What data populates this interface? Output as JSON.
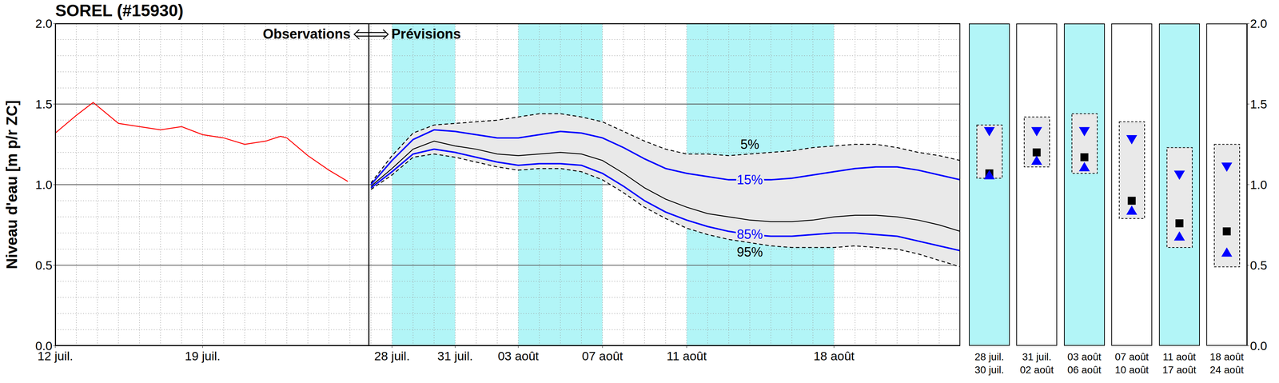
{
  "chart_data": [
    {
      "type": "line",
      "title": "SOREL (#15930)",
      "y_label": "Niveau d'eau [m p/r ZC]",
      "annotations": {
        "left": "Observations",
        "right": "Prévisions",
        "divider": 14.9
      },
      "highlight_periods": [
        [
          16,
          19
        ],
        [
          22,
          26
        ],
        [
          30,
          37
        ]
      ],
      "xlim": [
        0,
        43
      ],
      "xticks": [
        {
          "value": 0,
          "label": "12 juil."
        },
        {
          "value": 7,
          "label": "19 juil."
        },
        {
          "value": 16,
          "label": "28 juil."
        },
        {
          "value": 19,
          "label": "31 juil."
        },
        {
          "value": 22,
          "label": "03 août"
        },
        {
          "value": 26,
          "label": "07 août"
        },
        {
          "value": 30,
          "label": "11 août"
        },
        {
          "value": 37,
          "label": "18 août"
        }
      ],
      "ylim": [
        0,
        2
      ],
      "yticks": [
        {
          "value": 0,
          "label": "0.0"
        },
        0.5,
        {
          "value": 1,
          "label": "1.0"
        },
        1.5,
        {
          "value": 2,
          "label": "2.0"
        }
      ],
      "grid": true,
      "series": [
        {
          "color": "#ff0000",
          "line_style": "solid",
          "x": [
            0,
            1,
            1.8,
            3,
            4,
            5,
            6,
            7,
            8,
            9,
            10,
            10.7,
            11,
            12,
            13,
            13.9
          ],
          "values": [
            1.32,
            1.43,
            1.51,
            1.38,
            1.36,
            1.34,
            1.36,
            1.31,
            1.29,
            1.25,
            1.27,
            1.3,
            1.29,
            1.18,
            1.09,
            1.02
          ]
        },
        {
          "name": "5%",
          "color": "#000000",
          "line_style": "dashed",
          "x": [
            15,
            16,
            17,
            18,
            19,
            20,
            21,
            22,
            23,
            24,
            25,
            26,
            27,
            28,
            29,
            30,
            31,
            32,
            33,
            34,
            35,
            36,
            37,
            38,
            39,
            40,
            41,
            42,
            43
          ],
          "values": [
            1.01,
            1.18,
            1.32,
            1.37,
            1.38,
            1.39,
            1.4,
            1.42,
            1.44,
            1.44,
            1.42,
            1.39,
            1.33,
            1.27,
            1.22,
            1.19,
            1.19,
            1.18,
            1.19,
            1.2,
            1.21,
            1.23,
            1.24,
            1.25,
            1.25,
            1.23,
            1.2,
            1.18,
            1.15
          ]
        },
        {
          "name": "15%",
          "color": "#0000ff",
          "line_style": "solid",
          "x": [
            15,
            16,
            17,
            18,
            19,
            20,
            21,
            22,
            23,
            24,
            25,
            26,
            27,
            28,
            29,
            30,
            31,
            32,
            33,
            34,
            35,
            36,
            37,
            38,
            39,
            40,
            41,
            42,
            43
          ],
          "values": [
            1.0,
            1.15,
            1.28,
            1.34,
            1.33,
            1.31,
            1.29,
            1.29,
            1.31,
            1.33,
            1.32,
            1.29,
            1.23,
            1.16,
            1.1,
            1.07,
            1.05,
            1.03,
            1.03,
            1.03,
            1.04,
            1.06,
            1.08,
            1.1,
            1.11,
            1.11,
            1.09,
            1.06,
            1.03
          ]
        },
        {
          "color": "#000000",
          "line_style": "solid",
          "x": [
            15,
            16,
            17,
            18,
            19,
            20,
            21,
            22,
            23,
            24,
            25,
            26,
            27,
            28,
            29,
            30,
            31,
            32,
            33,
            34,
            35,
            36,
            37,
            38,
            39,
            40,
            41,
            42,
            43
          ],
          "values": [
            0.99,
            1.1,
            1.22,
            1.27,
            1.24,
            1.22,
            1.19,
            1.18,
            1.19,
            1.2,
            1.19,
            1.15,
            1.07,
            0.98,
            0.91,
            0.86,
            0.82,
            0.8,
            0.78,
            0.77,
            0.77,
            0.78,
            0.8,
            0.81,
            0.81,
            0.8,
            0.78,
            0.75,
            0.71
          ]
        },
        {
          "name": "85%",
          "color": "#0000ff",
          "line_style": "solid",
          "x": [
            15,
            16,
            17,
            18,
            19,
            20,
            21,
            22,
            23,
            24,
            25,
            26,
            27,
            28,
            29,
            30,
            31,
            32,
            33,
            34,
            35,
            36,
            37,
            38,
            39,
            40,
            41,
            42,
            43
          ],
          "values": [
            0.98,
            1.08,
            1.19,
            1.22,
            1.2,
            1.17,
            1.14,
            1.12,
            1.13,
            1.13,
            1.12,
            1.07,
            0.99,
            0.9,
            0.83,
            0.78,
            0.74,
            0.71,
            0.69,
            0.68,
            0.68,
            0.69,
            0.7,
            0.7,
            0.69,
            0.68,
            0.65,
            0.62,
            0.59
          ]
        },
        {
          "name": "95%",
          "color": "#000000",
          "line_style": "dashed",
          "x": [
            15,
            16,
            17,
            18,
            19,
            20,
            21,
            22,
            23,
            24,
            25,
            26,
            27,
            28,
            29,
            30,
            31,
            32,
            33,
            34,
            35,
            36,
            37,
            38,
            39,
            40,
            41,
            42,
            43
          ],
          "values": [
            0.97,
            1.06,
            1.17,
            1.19,
            1.17,
            1.14,
            1.11,
            1.09,
            1.1,
            1.1,
            1.08,
            1.03,
            0.95,
            0.86,
            0.79,
            0.73,
            0.69,
            0.66,
            0.64,
            0.62,
            0.61,
            0.61,
            0.61,
            0.62,
            0.61,
            0.6,
            0.57,
            0.53,
            0.49
          ]
        }
      ]
    },
    {
      "type": "interval",
      "categories": [
        [
          "28 juil.",
          "30 juil."
        ],
        [
          "31 juil.",
          "02 août"
        ],
        [
          "03 août",
          "06 août"
        ],
        [
          "07 août",
          "10 août"
        ],
        [
          "11 août",
          "17 août"
        ],
        [
          "18 août",
          "24 août"
        ]
      ],
      "colors": [
        "#b2f5f7",
        "#ffffff",
        "#b2f5f7",
        "#ffffff",
        "#b2f5f7",
        "#ffffff"
      ],
      "ylim": [
        0,
        2
      ],
      "yticks": [
        {
          "value": 0,
          "label": "0.0"
        },
        0.5,
        {
          "value": 1,
          "label": "1.0"
        },
        1.5,
        {
          "value": 2,
          "label": "2.0"
        }
      ],
      "series": [
        {
          "color": "#000000",
          "line_style": "dashed",
          "values": [
            1.37,
            1.42,
            1.44,
            1.39,
            1.23,
            1.25
          ]
        },
        {
          "color": "#0000ff",
          "marker": "triangle-down",
          "values": [
            1.33,
            1.33,
            1.33,
            1.28,
            1.06,
            1.11
          ]
        },
        {
          "color": "#000000",
          "marker": "square",
          "values": [
            1.07,
            1.2,
            1.17,
            0.9,
            0.76,
            0.71
          ]
        },
        {
          "color": "#0000ff",
          "marker": "triangle-up",
          "values": [
            1.06,
            1.15,
            1.11,
            0.84,
            0.68,
            0.58
          ]
        },
        {
          "color": "#000000",
          "line_style": "dashed",
          "values": [
            1.04,
            1.11,
            1.07,
            0.79,
            0.61,
            0.49
          ]
        }
      ]
    }
  ]
}
